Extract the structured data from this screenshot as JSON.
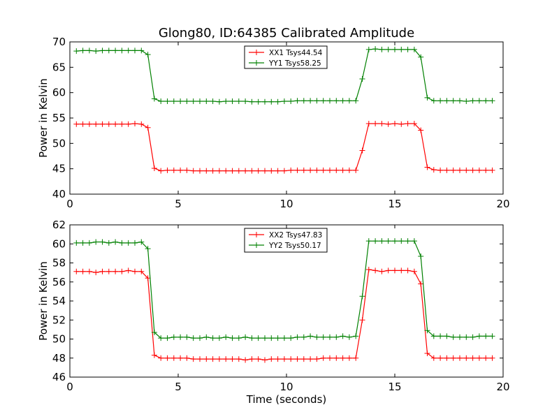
{
  "title": "Glong80, ID:64385 Calibrated Amplitude",
  "colors": {
    "xx": "#ff0000",
    "yy": "#008000"
  },
  "chart_data": [
    {
      "type": "line",
      "ylabel": "Power in Kelvin",
      "xlabel": "",
      "xlim": [
        0,
        20
      ],
      "ylim": [
        40,
        70
      ],
      "xticks": [
        0,
        5,
        10,
        15,
        20
      ],
      "yticks": [
        40,
        45,
        50,
        55,
        60,
        65,
        70
      ],
      "legend": "top-center",
      "x": [
        0.3,
        0.6,
        0.9,
        1.2,
        1.5,
        1.8,
        2.1,
        2.4,
        2.7,
        3.0,
        3.3,
        3.6,
        3.9,
        4.2,
        4.5,
        4.8,
        5.1,
        5.4,
        5.7,
        6.0,
        6.3,
        6.6,
        6.9,
        7.2,
        7.5,
        7.8,
        8.1,
        8.4,
        8.7,
        9.0,
        9.3,
        9.6,
        9.9,
        10.2,
        10.5,
        10.8,
        11.1,
        11.4,
        11.7,
        12.0,
        12.3,
        12.6,
        12.9,
        13.2,
        13.5,
        13.8,
        14.1,
        14.4,
        14.7,
        15.0,
        15.3,
        15.6,
        15.9,
        16.2,
        16.5,
        16.8,
        17.1,
        17.4,
        17.7,
        18.0,
        18.3,
        18.6,
        18.9,
        19.2,
        19.5
      ],
      "series": [
        {
          "name": "XX1 Tsys44.54",
          "color": "#ff0000",
          "values": [
            53.8,
            53.8,
            53.8,
            53.8,
            53.8,
            53.8,
            53.8,
            53.8,
            53.8,
            53.9,
            53.8,
            53.1,
            45.1,
            44.6,
            44.7,
            44.7,
            44.7,
            44.7,
            44.6,
            44.6,
            44.6,
            44.6,
            44.6,
            44.6,
            44.6,
            44.6,
            44.6,
            44.6,
            44.6,
            44.6,
            44.6,
            44.6,
            44.6,
            44.7,
            44.7,
            44.7,
            44.7,
            44.7,
            44.7,
            44.7,
            44.7,
            44.7,
            44.7,
            44.7,
            48.6,
            53.9,
            53.9,
            53.9,
            53.8,
            53.9,
            53.8,
            53.9,
            53.9,
            52.6,
            45.3,
            44.8,
            44.7,
            44.7,
            44.7,
            44.7,
            44.7,
            44.7,
            44.7,
            44.7,
            44.7
          ]
        },
        {
          "name": "YY1 Tsys58.25",
          "color": "#008000",
          "values": [
            68.2,
            68.3,
            68.3,
            68.2,
            68.3,
            68.3,
            68.3,
            68.3,
            68.3,
            68.3,
            68.3,
            67.5,
            58.8,
            58.3,
            58.3,
            58.3,
            58.3,
            58.3,
            58.3,
            58.3,
            58.3,
            58.3,
            58.2,
            58.3,
            58.3,
            58.3,
            58.3,
            58.2,
            58.2,
            58.2,
            58.2,
            58.2,
            58.3,
            58.3,
            58.4,
            58.4,
            58.4,
            58.4,
            58.4,
            58.4,
            58.4,
            58.4,
            58.4,
            58.4,
            62.7,
            68.5,
            68.6,
            68.5,
            68.5,
            68.5,
            68.5,
            68.5,
            68.5,
            67.0,
            59.0,
            58.4,
            58.4,
            58.4,
            58.4,
            58.4,
            58.3,
            58.4,
            58.4,
            58.4,
            58.4
          ]
        }
      ]
    },
    {
      "type": "line",
      "ylabel": "Power in Kelvin",
      "xlabel": "Time (seconds)",
      "xlim": [
        0,
        20
      ],
      "ylim": [
        46,
        62
      ],
      "xticks": [
        0,
        5,
        10,
        15,
        20
      ],
      "yticks": [
        46,
        48,
        50,
        52,
        54,
        56,
        58,
        60,
        62
      ],
      "legend": "top-center",
      "x": [
        0.3,
        0.6,
        0.9,
        1.2,
        1.5,
        1.8,
        2.1,
        2.4,
        2.7,
        3.0,
        3.3,
        3.6,
        3.9,
        4.2,
        4.5,
        4.8,
        5.1,
        5.4,
        5.7,
        6.0,
        6.3,
        6.6,
        6.9,
        7.2,
        7.5,
        7.8,
        8.1,
        8.4,
        8.7,
        9.0,
        9.3,
        9.6,
        9.9,
        10.2,
        10.5,
        10.8,
        11.1,
        11.4,
        11.7,
        12.0,
        12.3,
        12.6,
        12.9,
        13.2,
        13.5,
        13.8,
        14.1,
        14.4,
        14.7,
        15.0,
        15.3,
        15.6,
        15.9,
        16.2,
        16.5,
        16.8,
        17.1,
        17.4,
        17.7,
        18.0,
        18.3,
        18.6,
        18.9,
        19.2,
        19.5
      ],
      "series": [
        {
          "name": "XX2 Tsys47.83",
          "color": "#ff0000",
          "values": [
            57.1,
            57.1,
            57.1,
            57.0,
            57.1,
            57.1,
            57.1,
            57.1,
            57.2,
            57.1,
            57.1,
            56.4,
            48.3,
            48.0,
            48.0,
            48.0,
            48.0,
            48.0,
            47.9,
            47.9,
            47.9,
            47.9,
            47.9,
            47.9,
            47.9,
            47.9,
            47.8,
            47.9,
            47.9,
            47.8,
            47.9,
            47.9,
            47.9,
            47.9,
            47.9,
            47.9,
            47.9,
            47.9,
            48.0,
            48.0,
            48.0,
            48.0,
            48.0,
            48.0,
            52.0,
            57.3,
            57.2,
            57.1,
            57.2,
            57.2,
            57.2,
            57.2,
            57.1,
            55.8,
            48.5,
            48.0,
            48.0,
            48.0,
            48.0,
            48.0,
            48.0,
            48.0,
            48.0,
            48.0,
            48.0
          ]
        },
        {
          "name": "YY2 Tsys50.17",
          "color": "#008000",
          "values": [
            60.1,
            60.1,
            60.1,
            60.2,
            60.2,
            60.1,
            60.2,
            60.1,
            60.1,
            60.1,
            60.2,
            59.5,
            50.7,
            50.1,
            50.1,
            50.2,
            50.2,
            50.2,
            50.1,
            50.1,
            50.2,
            50.1,
            50.1,
            50.2,
            50.1,
            50.1,
            50.2,
            50.1,
            50.1,
            50.1,
            50.1,
            50.1,
            50.1,
            50.1,
            50.2,
            50.2,
            50.3,
            50.2,
            50.2,
            50.2,
            50.2,
            50.3,
            50.2,
            50.3,
            54.5,
            60.3,
            60.3,
            60.3,
            60.3,
            60.3,
            60.3,
            60.3,
            60.3,
            58.7,
            50.9,
            50.3,
            50.3,
            50.3,
            50.2,
            50.2,
            50.2,
            50.2,
            50.3,
            50.3,
            50.3
          ]
        }
      ]
    }
  ]
}
